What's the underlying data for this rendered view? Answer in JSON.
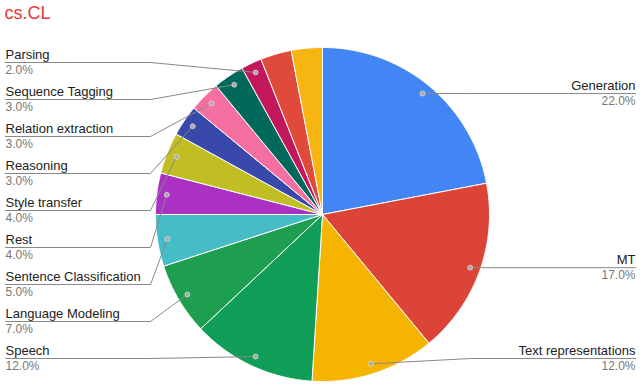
{
  "chart_data": {
    "type": "pie",
    "title": "cs.CL",
    "categories": [
      "Generation",
      "MT",
      "Text representations",
      "Speech",
      "Language Modeling",
      "Sentence Classification",
      "Rest",
      "Style transfer",
      "Reasoning",
      "Relation extraction",
      "Sequence Tagging",
      "Parsing",
      null,
      null
    ],
    "values": [
      22,
      17,
      12,
      12,
      7,
      5,
      4,
      4,
      3,
      3,
      3,
      2,
      3,
      3
    ],
    "value_labels": [
      "22.0%",
      "17.0%",
      "12.0%",
      "12.0%",
      "7.0%",
      "5.0%",
      "4.0%",
      "4.0%",
      "3.0%",
      "3.0%",
      "3.0%",
      "2.0%",
      null,
      null
    ],
    "colors": [
      "#4285f4",
      "#db4437",
      "#f4b400",
      "#0f9d58",
      "#1e9e4f",
      "#46bdc6",
      "#ab30c4",
      "#c1be23",
      "#3949ab",
      "#f56fa1",
      "#00695c",
      "#c2185b",
      "#e04a3b",
      "#f7b511"
    ],
    "data_labels": true
  }
}
